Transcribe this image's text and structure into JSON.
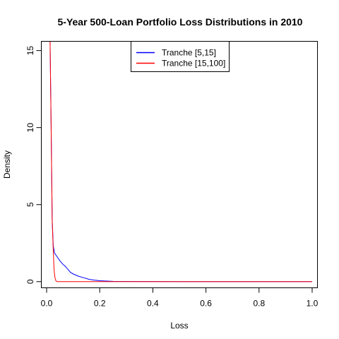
{
  "chart_data": {
    "type": "line",
    "title": "5-Year 500-Loan Portfolio Loss Distributions in 2010",
    "xlabel": "Loss",
    "ylabel": "Density",
    "xlim": [
      -0.02,
      1.02
    ],
    "ylim": [
      -0.4,
      15.6
    ],
    "xticks": [
      0.0,
      0.2,
      0.4,
      0.6,
      0.8,
      1.0
    ],
    "xtick_labels": [
      "0.0",
      "0.2",
      "0.4",
      "0.6",
      "0.8",
      "1.0"
    ],
    "yticks": [
      0,
      5,
      10,
      15
    ],
    "ytick_labels": [
      "0",
      "5",
      "10",
      "15"
    ],
    "grid": false,
    "legend_position": "top-center",
    "series": [
      {
        "name": "Tranche [5,15]",
        "color": "#0000ff",
        "x": [
          0.013,
          0.017,
          0.021,
          0.025,
          0.03,
          0.04,
          0.05,
          0.06,
          0.07,
          0.08,
          0.09,
          0.1,
          0.12,
          0.14,
          0.16,
          0.18,
          0.2,
          0.22,
          0.25,
          0.3,
          0.4,
          0.6,
          0.8,
          1.0
        ],
        "y": [
          15.6,
          10.0,
          4.0,
          2.3,
          1.85,
          1.6,
          1.35,
          1.15,
          1.0,
          0.8,
          0.6,
          0.5,
          0.35,
          0.25,
          0.15,
          0.1,
          0.06,
          0.04,
          0.02,
          0.01,
          0.005,
          0.002,
          0.001,
          0.001
        ]
      },
      {
        "name": "Tranche [15,100]",
        "color": "#ff0000",
        "x": [
          0.013,
          0.017,
          0.021,
          0.025,
          0.028,
          0.031,
          0.035,
          0.04,
          0.06,
          0.1,
          0.2,
          0.4,
          0.6,
          0.8,
          1.0
        ],
        "y": [
          15.6,
          10.0,
          4.0,
          2.0,
          0.8,
          0.3,
          0.05,
          0.0,
          0.0,
          0.0,
          0.0,
          0.0,
          0.0,
          0.0,
          0.0
        ]
      }
    ]
  }
}
